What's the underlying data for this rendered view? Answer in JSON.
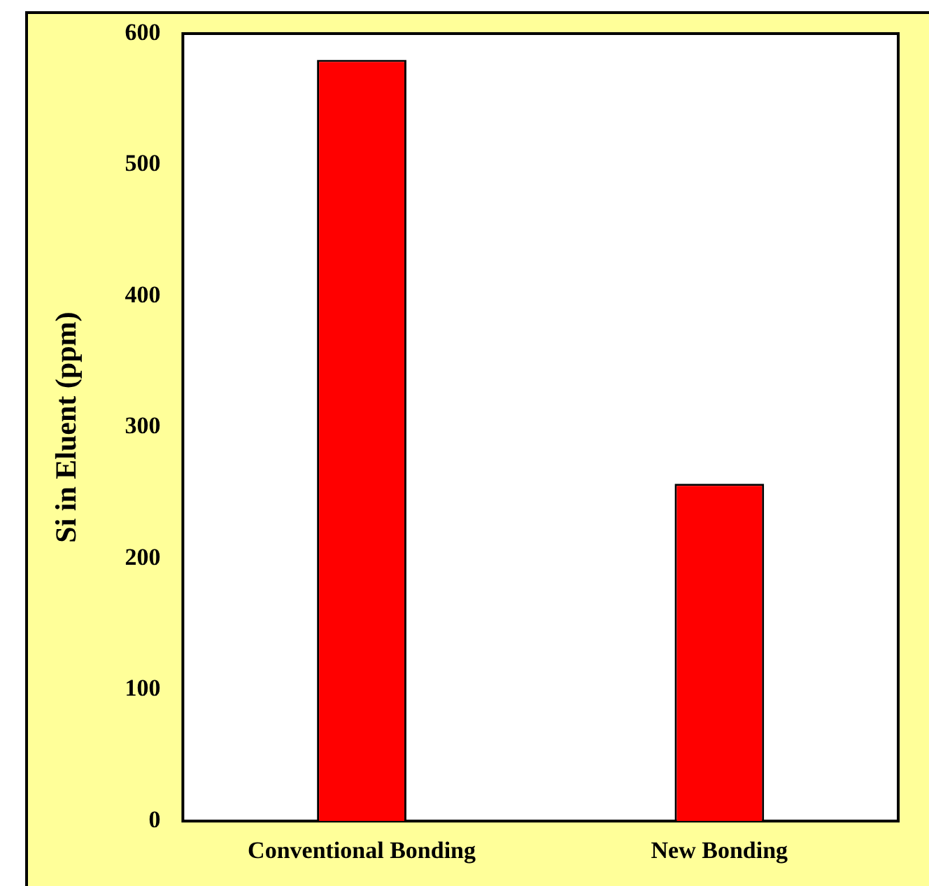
{
  "chart_data": {
    "type": "bar",
    "ylabel": "Si in Eluent (ppm)",
    "categories": [
      "Conventional Bonding",
      "New Bonding"
    ],
    "values": [
      580,
      257
    ],
    "color": "#ff0000",
    "ylim": [
      0,
      600
    ],
    "yticks": [
      0,
      100,
      200,
      300,
      400,
      500,
      600
    ],
    "grid": false
  }
}
